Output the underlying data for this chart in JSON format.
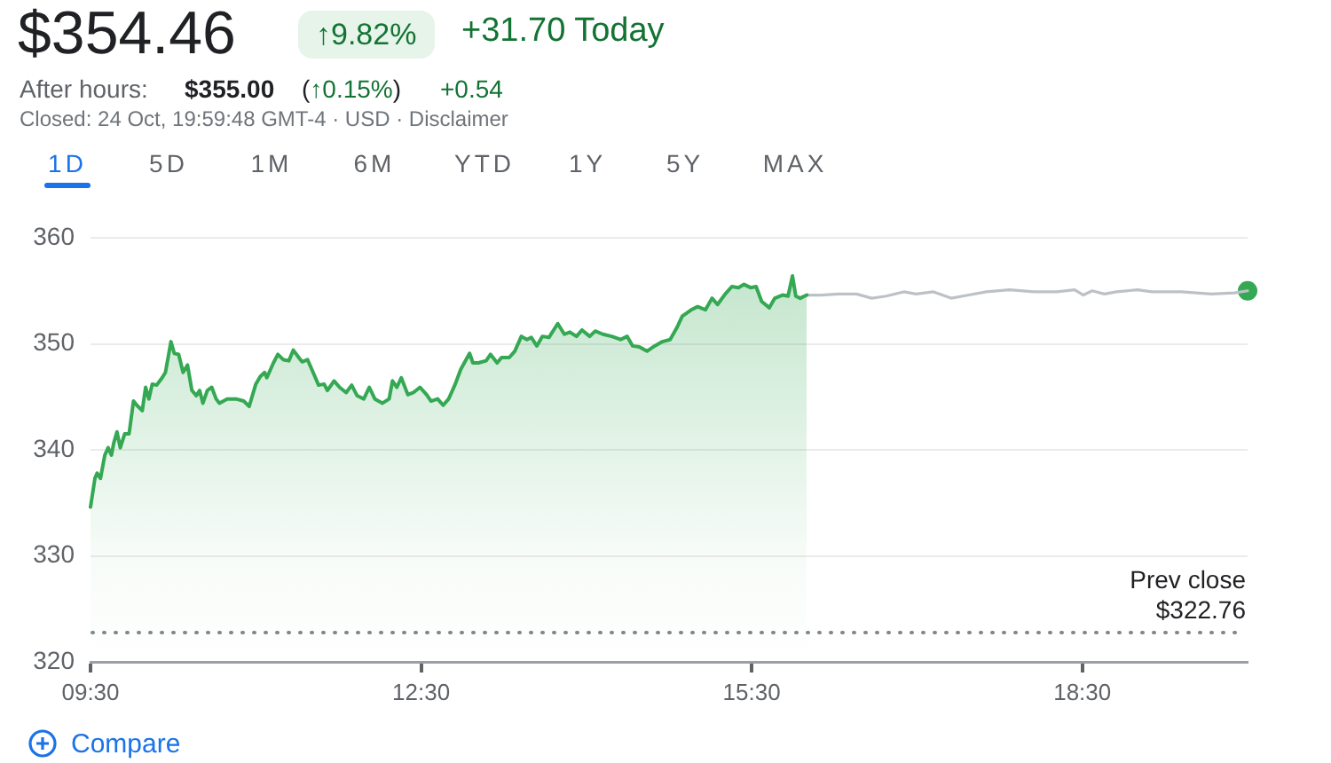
{
  "chart_data": {
    "type": "area",
    "title": "$354.46",
    "annotations": [
      "↑9.82%",
      "+31.70 Today",
      "After hours:",
      "$355.00",
      "(↑0.15%)",
      "+0.54",
      "Closed: 24 Oct, 19:59:48 GMT-4 · USD · Disclaimer",
      "1D",
      "5D",
      "1M",
      "6M",
      "YTD",
      "1Y",
      "5Y",
      "MAX",
      "Compare"
    ],
    "series": [
      {
        "color": "#34a853",
        "x": [
          9.5,
          9.54,
          9.56,
          9.59,
          9.63,
          9.66,
          9.69,
          9.71,
          9.74,
          9.77,
          9.81,
          9.85,
          9.89,
          9.92,
          9.97,
          10.0,
          10.03,
          10.06,
          10.1,
          10.15,
          10.18,
          10.23,
          10.26,
          10.3,
          10.34,
          10.38,
          10.42,
          10.46,
          10.49,
          10.52,
          10.56,
          10.6,
          10.64,
          10.67,
          10.74,
          10.82,
          10.89,
          10.94,
          11.0,
          11.04,
          11.08,
          11.1,
          11.16,
          11.2,
          11.25,
          11.3,
          11.34,
          11.39,
          11.42,
          11.47,
          11.52,
          11.57,
          11.62,
          11.65,
          11.71,
          11.76,
          11.82,
          11.87,
          11.92,
          11.98,
          12.03,
          12.08,
          12.15,
          12.21,
          12.24,
          12.28,
          12.32,
          12.38,
          12.43,
          12.49,
          12.55,
          12.59,
          12.65,
          12.7,
          12.75,
          12.81,
          12.86,
          12.94,
          12.97,
          13.02,
          13.09,
          13.13,
          13.19,
          13.23,
          13.3,
          13.35,
          13.41,
          13.46,
          13.5,
          13.55,
          13.6,
          13.66,
          13.74,
          13.8,
          13.85,
          13.91,
          13.96,
          14.03,
          14.08,
          14.15,
          14.23,
          14.31,
          14.37,
          14.42,
          14.48,
          14.55,
          14.62,
          14.69,
          14.76,
          14.82,
          14.87,
          14.95,
          15.01,
          15.08,
          15.14,
          15.19,
          15.26,
          15.32,
          15.38,
          15.43,
          15.49,
          15.54,
          15.59,
          15.66,
          15.71,
          15.78,
          15.83,
          15.87,
          15.9,
          15.94,
          16.0
        ],
        "values": [
          334.6,
          337.3,
          337.8,
          337.3,
          339.5,
          340.2,
          339.5,
          340.6,
          341.7,
          340.2,
          341.5,
          341.5,
          344.6,
          344.2,
          343.7,
          345.9,
          344.8,
          346.2,
          346.1,
          346.8,
          347.3,
          350.2,
          349.1,
          349.0,
          347.3,
          348.0,
          345.6,
          345.1,
          345.6,
          344.4,
          345.6,
          345.9,
          344.8,
          344.4,
          344.8,
          344.8,
          344.6,
          344.1,
          346.2,
          346.9,
          347.3,
          346.8,
          348.2,
          349.0,
          348.5,
          348.4,
          349.4,
          348.7,
          348.3,
          348.5,
          347.3,
          346.1,
          346.2,
          345.6,
          346.5,
          345.9,
          345.4,
          346.1,
          345.1,
          344.8,
          345.9,
          344.8,
          344.4,
          344.8,
          346.5,
          345.9,
          346.8,
          345.2,
          345.4,
          345.9,
          345.2,
          344.6,
          344.8,
          344.2,
          344.8,
          346.2,
          347.6,
          349.1,
          348.2,
          348.2,
          348.4,
          349.0,
          348.2,
          348.7,
          348.7,
          349.3,
          350.7,
          350.4,
          350.6,
          349.8,
          350.7,
          350.6,
          351.9,
          350.9,
          351.1,
          350.7,
          351.3,
          350.7,
          351.2,
          350.9,
          350.7,
          350.4,
          350.7,
          349.8,
          349.7,
          349.3,
          349.8,
          350.2,
          350.4,
          351.5,
          352.6,
          353.2,
          353.5,
          353.2,
          354.3,
          353.7,
          354.7,
          355.4,
          355.3,
          355.6,
          355.3,
          355.4,
          354.0,
          353.4,
          354.3,
          354.6,
          354.5,
          356.4,
          354.5,
          354.3,
          354.6
        ]
      },
      {
        "type": "line",
        "color": "#bdc1c6",
        "x": [
          16.0,
          16.13,
          16.29,
          16.45,
          16.59,
          16.72,
          16.88,
          16.99,
          17.15,
          17.31,
          17.47,
          17.63,
          17.84,
          18.06,
          18.27,
          18.43,
          18.51,
          18.59,
          18.7,
          18.81,
          19.0,
          19.13,
          19.4,
          19.67,
          19.88,
          20.0
        ],
        "values": [
          354.6,
          354.6,
          354.7,
          354.7,
          354.3,
          354.5,
          354.9,
          354.7,
          354.9,
          354.3,
          354.6,
          354.9,
          355.1,
          354.9,
          354.9,
          355.1,
          354.6,
          355.0,
          354.7,
          354.9,
          355.1,
          354.9,
          354.9,
          354.7,
          354.8,
          355.0
        ]
      },
      {
        "type": "scatter",
        "color": "#34a853",
        "marker": "circle",
        "x": [
          20.0
        ],
        "values": [
          355.0
        ]
      }
    ],
    "xlim": [
      9.5,
      20.0
    ],
    "xticks": [
      {
        "value": 9.5,
        "label": "09:30"
      },
      {
        "value": 12.5,
        "label": "12:30"
      },
      {
        "value": 15.5,
        "label": "15:30"
      },
      {
        "value": 18.5,
        "label": "18:30"
      }
    ],
    "ylim": [
      320,
      360
    ],
    "yticks": [
      320,
      330,
      340,
      350,
      360
    ],
    "grid": "y",
    "ref_lines": [
      {
        "axis": "y",
        "value": 322.76,
        "label": "Prev close\n$322.76",
        "line_style": "dotted",
        "color": "#80868b"
      }
    ]
  }
}
